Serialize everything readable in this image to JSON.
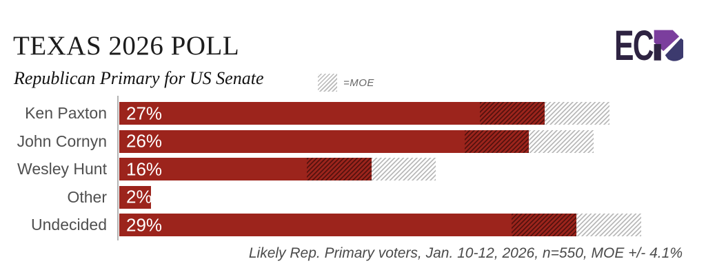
{
  "header": {
    "title": "TEXAS 2026 POLL",
    "subtitle": "Republican Primary for US Senate"
  },
  "legend": {
    "moe_label": "=MOE"
  },
  "logo": {
    "alt": "ECP",
    "letters": "EC",
    "colors": {
      "dark": "#2E2342",
      "purple": "#7B3E9D",
      "navy": "#3C3A6E"
    }
  },
  "chart_data": {
    "type": "bar",
    "orientation": "horizontal",
    "title": "TEXAS 2026 POLL",
    "subtitle": "Republican Primary for US Senate",
    "categories": [
      "Ken Paxton",
      "John Cornyn",
      "Wesley Hunt",
      "Other",
      "Undecided"
    ],
    "values": [
      27,
      26,
      16,
      2,
      29
    ],
    "value_labels": [
      "27%",
      "26%",
      "16%",
      "2%",
      "29%"
    ],
    "moe": 4.1,
    "xlim": [
      0,
      35
    ],
    "grid": false,
    "legend_label": "=MOE",
    "legend_position": "top",
    "bar_color": "#9C241C",
    "hatch_gray": "#B9B9B9",
    "moe_lower_style": "dark-hatch-over-bar",
    "moe_upper_style": "gray-hatch-on-white",
    "footnote": "Likely Rep. Primary voters, Jan. 10-12, 2026, n=550, MOE +/- 4.1%"
  },
  "footnote": "Likely Rep. Primary voters, Jan. 10-12, 2026, n=550, MOE +/- 4.1%"
}
